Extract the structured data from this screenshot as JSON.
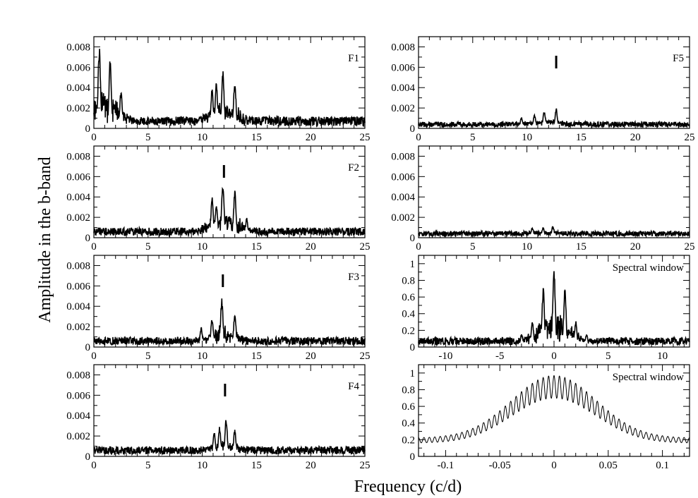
{
  "figure": {
    "xlabel": "Frequency (c/d)",
    "ylabel": "Amplitude in the b-band"
  },
  "chart_data": [
    {
      "type": "line",
      "label": "F1",
      "xlim": [
        0,
        25
      ],
      "ylim": [
        0,
        0.009
      ],
      "xticks": [
        0,
        5,
        10,
        15,
        20,
        25
      ],
      "yticks": [
        0,
        0.002,
        0.004,
        0.006,
        0.008
      ],
      "ytick_labels": [
        "0",
        "0.002",
        "0.004",
        "0.006",
        "0.008"
      ],
      "baseline": 0.0007,
      "peaks": [
        [
          0.5,
          0.0082
        ],
        [
          1.5,
          0.0068
        ],
        [
          2.5,
          0.0038
        ],
        [
          10.9,
          0.004
        ],
        [
          11.9,
          0.0058
        ],
        [
          13.0,
          0.0048
        ],
        [
          11.3,
          0.0045
        ]
      ]
    },
    {
      "type": "line",
      "label": "F5",
      "xlim": [
        0,
        25
      ],
      "ylim": [
        0,
        0.009
      ],
      "xticks": [
        0,
        5,
        10,
        15,
        20,
        25
      ],
      "yticks": [
        0,
        0.002,
        0.004,
        0.006,
        0.008
      ],
      "ytick_labels": [
        "0",
        "0.002",
        "0.004",
        "0.006",
        "0.008"
      ],
      "baseline": 0.0004,
      "marker_x": 12.7,
      "peaks": [
        [
          9.5,
          0.0011
        ],
        [
          10.7,
          0.0014
        ],
        [
          11.6,
          0.0018
        ],
        [
          12.7,
          0.002
        ]
      ]
    },
    {
      "type": "line",
      "label": "F2",
      "xlim": [
        0,
        25
      ],
      "ylim": [
        0,
        0.009
      ],
      "xticks": [
        0,
        5,
        10,
        15,
        20,
        25
      ],
      "yticks": [
        0,
        0.002,
        0.004,
        0.006,
        0.008
      ],
      "ytick_labels": [
        "0",
        "0.002",
        "0.004",
        "0.006",
        "0.008"
      ],
      "baseline": 0.0006,
      "marker_x": 12.0,
      "peaks": [
        [
          10.9,
          0.004
        ],
        [
          11.9,
          0.0057
        ],
        [
          13.0,
          0.0048
        ],
        [
          11.3,
          0.0035
        ],
        [
          14.1,
          0.002
        ]
      ]
    },
    {
      "type": "line",
      "label": "",
      "xlim": [
        0,
        25
      ],
      "ylim": [
        0,
        0.009
      ],
      "xticks": [
        0,
        5,
        10,
        15,
        20,
        25
      ],
      "yticks": [
        0,
        0.002,
        0.004,
        0.006,
        0.008
      ],
      "ytick_labels": [
        "0",
        "0.002",
        "0.004",
        "0.006",
        "0.008"
      ],
      "baseline": 0.0004,
      "peaks": [
        [
          10.5,
          0.001
        ],
        [
          11.5,
          0.0011
        ],
        [
          12.4,
          0.0012
        ]
      ]
    },
    {
      "type": "line",
      "label": "F3",
      "xlim": [
        0,
        25
      ],
      "ylim": [
        0,
        0.009
      ],
      "xticks": [
        0,
        5,
        10,
        15,
        20,
        25
      ],
      "yticks": [
        0,
        0.002,
        0.004,
        0.006,
        0.008
      ],
      "ytick_labels": [
        "0",
        "0.002",
        "0.004",
        "0.006",
        "0.008"
      ],
      "baseline": 0.0006,
      "marker_x": 11.9,
      "peaks": [
        [
          10.9,
          0.003
        ],
        [
          11.8,
          0.0049
        ],
        [
          13.0,
          0.0034
        ],
        [
          9.9,
          0.002
        ]
      ]
    },
    {
      "type": "line",
      "label": "Spectral window",
      "xlim": [
        -12.5,
        12.5
      ],
      "ylim": [
        0,
        1.1
      ],
      "xticks": [
        -10,
        -5,
        0,
        5,
        10
      ],
      "yticks": [
        0,
        0.2,
        0.4,
        0.6,
        0.8,
        1
      ],
      "ytick_labels": [
        "0",
        "0.2",
        "0.4",
        "0.6",
        "0.8",
        "1"
      ],
      "baseline": 0.07,
      "peaks": [
        [
          0,
          1.0
        ],
        [
          -1,
          0.74
        ],
        [
          1,
          0.72
        ],
        [
          -2,
          0.33
        ],
        [
          2,
          0.32
        ],
        [
          -3,
          0.16
        ],
        [
          3,
          0.16
        ]
      ]
    },
    {
      "type": "line",
      "label": "F4",
      "xlim": [
        0,
        25
      ],
      "ylim": [
        0,
        0.009
      ],
      "xticks": [
        0,
        5,
        10,
        15,
        20,
        25
      ],
      "yticks": [
        0,
        0.002,
        0.004,
        0.006,
        0.008
      ],
      "ytick_labels": [
        "0",
        "0.002",
        "0.004",
        "0.006",
        "0.008"
      ],
      "baseline": 0.0006,
      "marker_x": 12.1,
      "peaks": [
        [
          11.1,
          0.0026
        ],
        [
          11.6,
          0.003
        ],
        [
          12.2,
          0.0038
        ],
        [
          13.0,
          0.0027
        ]
      ]
    },
    {
      "type": "line",
      "label": "Spectral window",
      "xlim": [
        -0.125,
        0.125
      ],
      "ylim": [
        0,
        1.1
      ],
      "xticks": [
        -0.1,
        -0.05,
        0,
        0.05,
        0.1
      ],
      "yticks": [
        0,
        0.2,
        0.4,
        0.6,
        0.8,
        1
      ],
      "ytick_labels": [
        "0",
        "0.2",
        "0.4",
        "0.6",
        "0.8",
        "1"
      ],
      "xtick_labels": [
        "-0.1",
        "-0.05",
        "0",
        "0.05",
        "0.1"
      ],
      "envelope": {
        "center": 0,
        "peak": 0.97,
        "floor": 0.22,
        "width": 0.055
      },
      "oscillation_period": 0.005
    }
  ]
}
